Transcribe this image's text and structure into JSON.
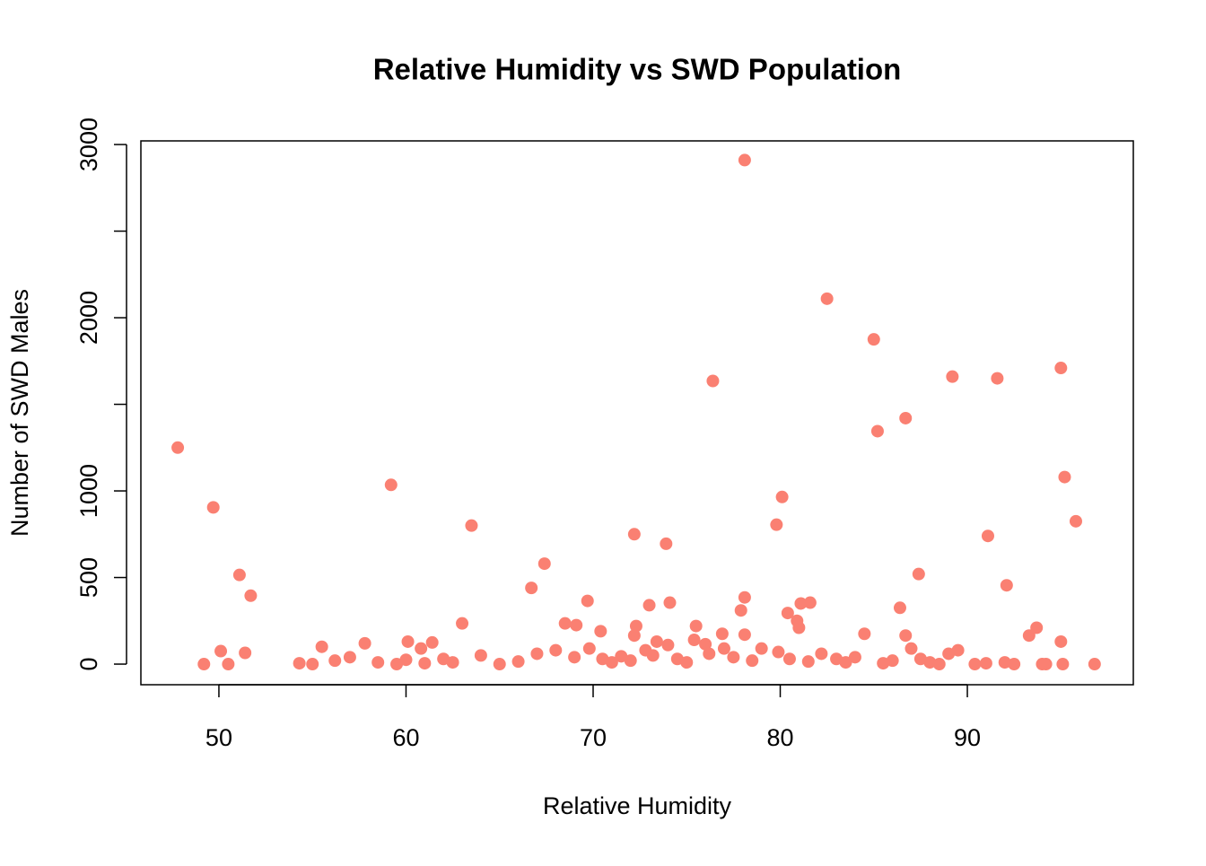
{
  "chart_data": {
    "type": "scatter",
    "title": "Relative Humidity vs SWD Population",
    "x_label": "Relative Humidity",
    "y_label": "Number of SWD Males",
    "color": "#fa8072",
    "xlim": [
      45.83,
      98.87
    ],
    "ylim": [
      -119,
      3021
    ],
    "xticks": [
      50,
      60,
      70,
      80,
      90
    ],
    "yticks": [
      0,
      500,
      1000,
      {
        "value": 1500,
        "label": null
      },
      2000,
      {
        "value": 2500,
        "label": null
      },
      3000
    ],
    "x": [
      47.8,
      49.7,
      51.1,
      51.7,
      50.1,
      51.4,
      49.2,
      50.5,
      59.2,
      63.5,
      63.0,
      55.5,
      57.8,
      60.1,
      61.4,
      60.8,
      66.7,
      67.4,
      69.7,
      68.5,
      69.1,
      70.4,
      72.2,
      72.3,
      72.2,
      73.0,
      73.9,
      74.1,
      73.4,
      74.0,
      75.5,
      75.4,
      76.4,
      76.0,
      76.9,
      77.9,
      78.1,
      78.1,
      78.1,
      79.8,
      80.1,
      80.4,
      80.9,
      81.0,
      81.1,
      81.6,
      82.5,
      85.0,
      85.2,
      84.5,
      86.4,
      86.7,
      86.7,
      87.4,
      89.2,
      89.5,
      91.1,
      91.6,
      92.1,
      93.3,
      93.7,
      95.0,
      95.2,
      95.8,
      95.0,
      95.1,
      96.8,
      90.4,
      92.5,
      94.0,
      54.3,
      55.0,
      56.2,
      57.0,
      58.5,
      59.5,
      60.0,
      61.0,
      62.0,
      62.5,
      64.0,
      65.0,
      66.0,
      67.0,
      68.0,
      69.0,
      69.8,
      70.5,
      71.0,
      71.5,
      72.0,
      72.8,
      73.2,
      74.5,
      75.0,
      76.2,
      77.0,
      77.5,
      78.5,
      79.0,
      79.9,
      80.5,
      81.5,
      82.2,
      83.0,
      83.5,
      84.0,
      85.5,
      86.0,
      87.0,
      87.5,
      88.0,
      88.5,
      89.0,
      91.0,
      92.0,
      94.2
    ],
    "values": [
      1250,
      905,
      515,
      395,
      75,
      65,
      0,
      0,
      1035,
      800,
      235,
      100,
      120,
      130,
      125,
      90,
      440,
      580,
      365,
      235,
      225,
      190,
      750,
      220,
      165,
      340,
      695,
      355,
      130,
      110,
      220,
      140,
      1635,
      115,
      175,
      310,
      2910,
      385,
      170,
      805,
      965,
      295,
      250,
      210,
      350,
      355,
      2110,
      1875,
      1345,
      175,
      325,
      1420,
      165,
      520,
      1660,
      80,
      740,
      1650,
      455,
      165,
      210,
      1710,
      1080,
      825,
      130,
      0,
      0,
      0,
      0,
      0,
      5,
      0,
      20,
      40,
      10,
      0,
      25,
      5,
      30,
      10,
      50,
      0,
      15,
      60,
      80,
      40,
      90,
      30,
      10,
      45,
      20,
      80,
      50,
      30,
      10,
      60,
      90,
      40,
      20,
      90,
      70,
      30,
      15,
      60,
      30,
      10,
      40,
      5,
      20,
      90,
      30,
      10,
      0,
      60,
      5,
      10,
      0
    ]
  }
}
